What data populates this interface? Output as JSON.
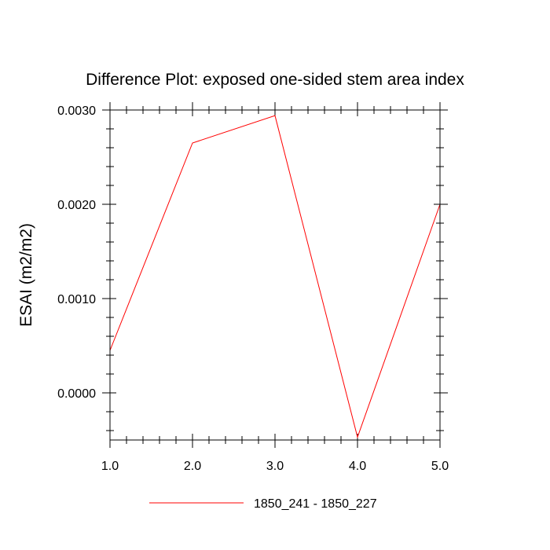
{
  "chart_data": {
    "type": "line",
    "title": "Difference Plot: exposed one-sided stem area index",
    "xlabel": "",
    "ylabel": "ESAI  (m2/m2)",
    "x": [
      1.0,
      2.0,
      3.0,
      4.0,
      5.0
    ],
    "series": [
      {
        "name": "1850_241 - 1850_227",
        "color": "#ff0000",
        "values": [
          0.00045,
          0.00265,
          0.00294,
          -0.00047,
          0.002
        ]
      }
    ],
    "xlim": [
      1.0,
      5.0
    ],
    "ylim": [
      -0.0005,
      0.003
    ],
    "x_ticks": [
      "1.0",
      "2.0",
      "3.0",
      "4.0",
      "5.0"
    ],
    "x_tick_values": [
      1.0,
      2.0,
      3.0,
      4.0,
      5.0
    ],
    "y_ticks": [
      "0.0000",
      "0.0010",
      "0.0020",
      "0.0030"
    ],
    "y_tick_values": [
      0.0,
      0.001,
      0.002,
      0.003
    ],
    "y_minor_step": 0.0002,
    "x_minor_step": 0.2,
    "grid": false,
    "legend_position": "bottom-center"
  }
}
